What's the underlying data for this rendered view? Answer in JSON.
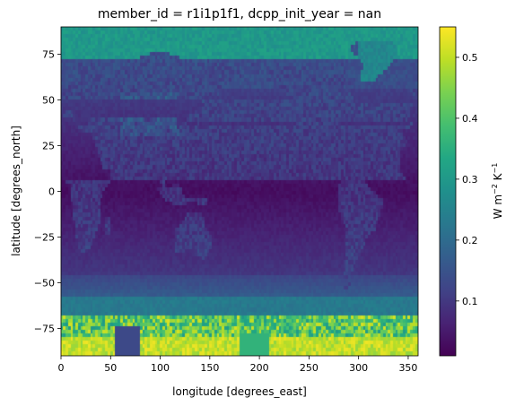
{
  "chart_data": {
    "type": "heatmap",
    "title": "member_id = r1i1p1f1, dcpp_init_year = nan",
    "xlabel": "longitude [degrees_east]",
    "ylabel": "latitude [degrees_north]",
    "xlim": [
      0,
      360
    ],
    "ylim": [
      -90,
      90
    ],
    "x_ticks": [
      0,
      50,
      100,
      150,
      200,
      250,
      300,
      350
    ],
    "y_ticks": [
      -75,
      -50,
      -25,
      0,
      25,
      50,
      75
    ],
    "colorbar": {
      "label_main": "W m",
      "label_exp1": "−2",
      "label_mid": " K",
      "label_exp2": "−1",
      "min": 0.01,
      "max": 0.55,
      "ticks": [
        0.1,
        0.2,
        0.3,
        0.4,
        0.5
      ],
      "colormap": "viridis"
    },
    "field_summary": {
      "equatorial_ocean": 0.04,
      "tropical_land": 0.1,
      "midlatitude_ocean": 0.08,
      "southern_ocean_60S": 0.22,
      "antarctic_coast": 0.32,
      "antarctic_interior": 0.5,
      "arctic_ocean": 0.3,
      "greenland": 0.27
    }
  }
}
